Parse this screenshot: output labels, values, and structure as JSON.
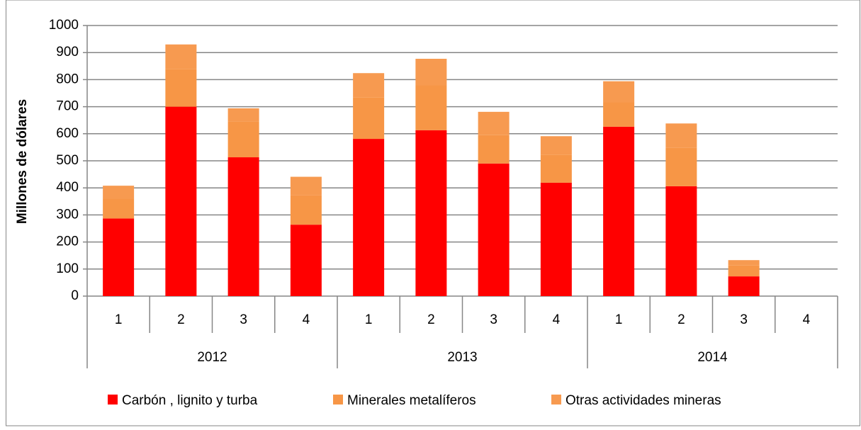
{
  "chart_data": {
    "type": "stacked_bar",
    "y_label": "Millones de dólares",
    "categories": [
      "1",
      "2",
      "3",
      "4",
      "1",
      "2",
      "3",
      "4",
      "1",
      "2",
      "3",
      "4"
    ],
    "groups": [
      "2012",
      "2013",
      "2014"
    ],
    "series": [
      {
        "name": "Carbón , lignito y turba",
        "color": "#ff0000",
        "values": [
          287,
          700,
          513,
          264,
          581,
          613,
          490,
          419,
          626,
          406,
          73,
          null
        ]
      },
      {
        "name": "Minerales metalíferos",
        "color": "#f79646",
        "values": [
          73,
          138,
          132,
          108,
          154,
          167,
          105,
          104,
          90,
          142,
          40,
          null
        ]
      },
      {
        "name": "Otras actividades mineras",
        "color": "#f79a50",
        "values": [
          48,
          92,
          49,
          69,
          89,
          97,
          86,
          68,
          78,
          90,
          20,
          null
        ]
      }
    ],
    "ylim": [
      0,
      1000
    ],
    "yticks": [
      0,
      100,
      200,
      300,
      400,
      500,
      600,
      700,
      800,
      900,
      1000
    ],
    "grid": true
  }
}
